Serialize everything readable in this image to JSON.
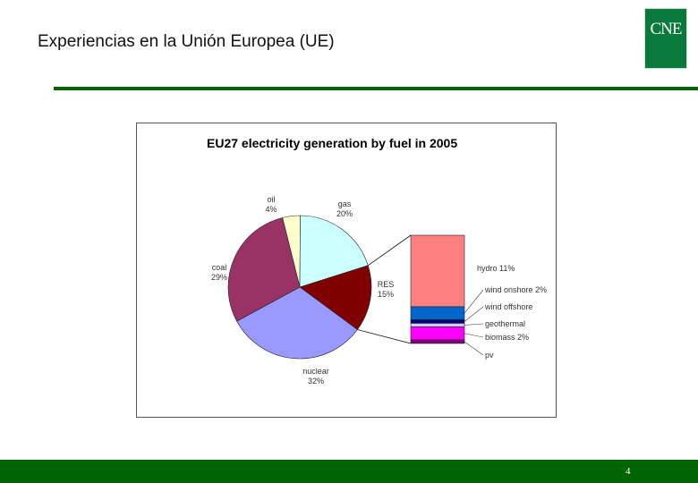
{
  "slide": {
    "title": "Experiencias en la Unión Europea (UE)",
    "logo_text": "CNE",
    "page_number": "4",
    "colors": {
      "brand_green": "#006400",
      "logo_green": "#0a7a3c"
    }
  },
  "chart_data": {
    "type": "pie",
    "title": "EU27 electricity generation by fuel in 2005",
    "slices": [
      {
        "name": "oil",
        "label": "oil",
        "pct_label": "4%",
        "value": 4,
        "color": "#ffffcc"
      },
      {
        "name": "gas",
        "label": "gas",
        "pct_label": "20%",
        "value": 20,
        "color": "#ccffff"
      },
      {
        "name": "RES",
        "label": "RES",
        "pct_label": "15%",
        "value": 15,
        "color": "#800000"
      },
      {
        "name": "nuclear",
        "label": "nuclear",
        "pct_label": "32%",
        "value": 32,
        "color": "#9999ff"
      },
      {
        "name": "coal",
        "label": "coal",
        "pct_label": "29%",
        "value": 29,
        "color": "#993366"
      }
    ],
    "breakdown": {
      "of": "RES",
      "type": "stacked-bar",
      "segments": [
        {
          "name": "hydro",
          "label": "hydro 11%",
          "value": 11,
          "color": "#ff8080"
        },
        {
          "name": "wind onshore",
          "label": "wind onshore 2%",
          "value": 2,
          "color": "#0066cc"
        },
        {
          "name": "wind offshore",
          "label": "wind offshore",
          "value": 0.1,
          "color": "#000080"
        },
        {
          "name": "geothermal",
          "label": "geothermal",
          "value": 0.2,
          "color": "#ccccff"
        },
        {
          "name": "biomass",
          "label": "biomass 2%",
          "value": 2,
          "color": "#ff00ff"
        },
        {
          "name": "pv",
          "label": "pv",
          "value": 0.5,
          "color": "#800080"
        }
      ]
    }
  }
}
